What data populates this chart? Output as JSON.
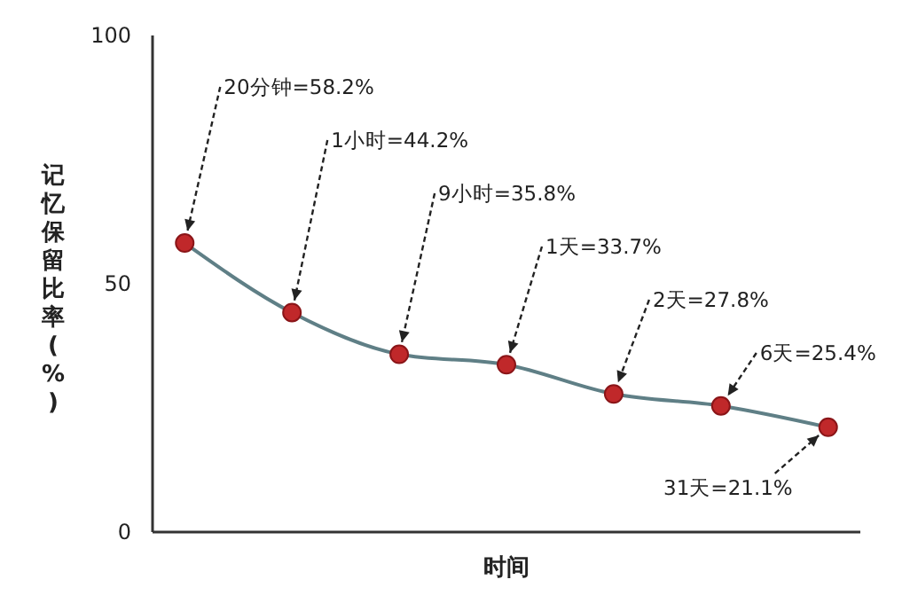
{
  "chart_data": {
    "type": "line",
    "xlabel": "时间",
    "ylabel": "记忆保留比率(%)",
    "categories": [
      null,
      null,
      null,
      null,
      null,
      null,
      null
    ],
    "series": [
      {
        "color": "#5f7f86",
        "colors": [
          "#c0282a",
          "#c0282a",
          "#c0282a",
          "#c0282a",
          "#c0282a",
          "#c0282a",
          "#c0282a"
        ],
        "values": [
          58.2,
          44.2,
          35.8,
          33.7,
          27.8,
          25.4,
          21.1
        ],
        "value_labels": [
          "20分钟=58.2%",
          "1小时=44.2%",
          "9小时=35.8%",
          "1天=33.7%",
          "2天=27.8%",
          "6天=25.4%",
          "31天=21.1%"
        ]
      }
    ],
    "marker": "circle",
    "line_style": "solid",
    "ylim": [
      0,
      100
    ],
    "yticks": [
      0,
      50,
      100
    ],
    "grid": false
  }
}
